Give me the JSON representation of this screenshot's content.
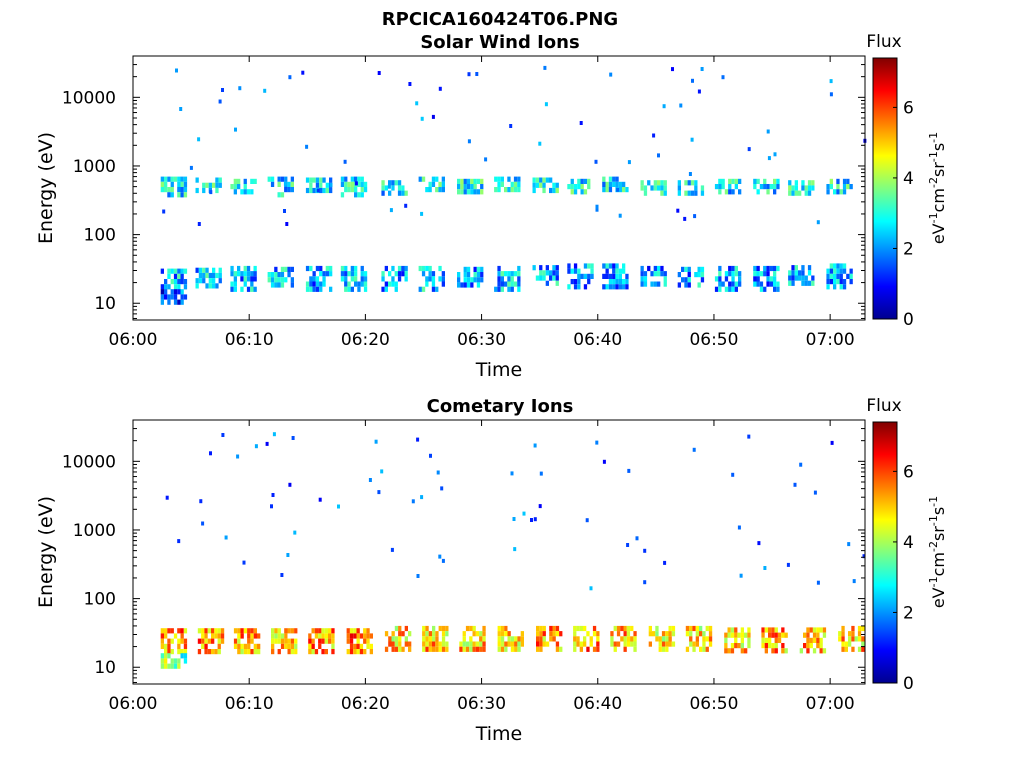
{
  "figure": {
    "file_title": "RPCICA160424T06.PNG"
  },
  "chart_data": [
    {
      "type": "heatmap",
      "title": "Solar Wind Ions",
      "xlabel": "Time",
      "ylabel": "Energy (eV)",
      "x_range": [
        "06:00",
        "07:03"
      ],
      "x_ticks": [
        "06:00",
        "06:10",
        "06:20",
        "06:30",
        "06:40",
        "06:50",
        "07:00"
      ],
      "y_scale": "log",
      "y_range": [
        5.7,
        40000
      ],
      "y_ticks": [
        "10",
        "100",
        "1000",
        "10000"
      ],
      "colorbar": {
        "title": "Flux",
        "label": "eV-1cm-2sr-1s-1",
        "range": [
          0,
          7.4
        ],
        "ticks": [
          "0",
          "2",
          "4",
          "6"
        ],
        "colormap": "jet"
      },
      "bursts": [
        {
          "t": "06:03.5",
          "features": [
            {
              "emin": 400,
              "emax": 700,
              "level": 2.6
            },
            {
              "emin": 16,
              "emax": 32,
              "level": 2.3
            },
            {
              "emin": 11,
              "emax": 16,
              "level": 1.4
            }
          ]
        },
        {
          "t": "06:06.5",
          "features": [
            {
              "emin": 420,
              "emax": 680,
              "level": 2.7
            },
            {
              "emin": 17,
              "emax": 33,
              "level": 2.4
            }
          ]
        },
        {
          "t": "06:09.5",
          "features": [
            {
              "emin": 450,
              "emax": 650,
              "level": 2.8
            },
            {
              "emin": 17,
              "emax": 35,
              "level": 2.2
            }
          ]
        },
        {
          "t": "06:12.7",
          "features": [
            {
              "emin": 400,
              "emax": 700,
              "level": 2.7
            },
            {
              "emin": 17,
              "emax": 34,
              "level": 2.3
            }
          ]
        },
        {
          "t": "06:16.0",
          "features": [
            {
              "emin": 430,
              "emax": 680,
              "level": 2.8
            },
            {
              "emin": 17,
              "emax": 35,
              "level": 2.1
            }
          ]
        },
        {
          "t": "06:19.0",
          "features": [
            {
              "emin": 380,
              "emax": 700,
              "level": 2.6
            },
            {
              "emin": 16,
              "emax": 35,
              "level": 2.3
            }
          ]
        },
        {
          "t": "06:22.5",
          "features": [
            {
              "emin": 380,
              "emax": 620,
              "level": 2.7
            },
            {
              "emin": 17,
              "emax": 35,
              "level": 2.2
            }
          ]
        },
        {
          "t": "06:25.7",
          "features": [
            {
              "emin": 420,
              "emax": 700,
              "level": 2.7
            },
            {
              "emin": 17,
              "emax": 35,
              "level": 2.4
            }
          ]
        },
        {
          "t": "06:29.0",
          "features": [
            {
              "emin": 440,
              "emax": 650,
              "level": 2.8
            },
            {
              "emin": 17,
              "emax": 34,
              "level": 2.2
            }
          ]
        },
        {
          "t": "06:32.2",
          "features": [
            {
              "emin": 420,
              "emax": 700,
              "level": 2.7
            },
            {
              "emin": 17,
              "emax": 35,
              "level": 2.4
            }
          ]
        },
        {
          "t": "06:35.5",
          "features": [
            {
              "emin": 430,
              "emax": 680,
              "level": 2.8
            },
            {
              "emin": 18,
              "emax": 36,
              "level": 2.3
            }
          ]
        },
        {
          "t": "06:38.5",
          "features": [
            {
              "emin": 440,
              "emax": 650,
              "level": 2.8
            },
            {
              "emin": 18,
              "emax": 38,
              "level": 2.1
            }
          ]
        },
        {
          "t": "06:41.5",
          "features": [
            {
              "emin": 450,
              "emax": 700,
              "level": 2.6
            },
            {
              "emin": 18,
              "emax": 38,
              "level": 2.2
            }
          ]
        },
        {
          "t": "06:44.8",
          "features": [
            {
              "emin": 430,
              "emax": 620,
              "level": 2.7
            },
            {
              "emin": 18,
              "emax": 35,
              "level": 2.0
            }
          ]
        },
        {
          "t": "06:48.0",
          "features": [
            {
              "emin": 400,
              "emax": 620,
              "level": 2.7
            },
            {
              "emin": 18,
              "emax": 34,
              "level": 2.1
            }
          ]
        },
        {
          "t": "06:51.2",
          "features": [
            {
              "emin": 400,
              "emax": 650,
              "level": 2.6
            },
            {
              "emin": 17,
              "emax": 35,
              "level": 2.2
            }
          ]
        },
        {
          "t": "06:54.5",
          "features": [
            {
              "emin": 450,
              "emax": 650,
              "level": 2.7
            },
            {
              "emin": 17,
              "emax": 35,
              "level": 2.1
            }
          ]
        },
        {
          "t": "06:57.5",
          "features": [
            {
              "emin": 420,
              "emax": 620,
              "level": 2.8
            },
            {
              "emin": 18,
              "emax": 36,
              "level": 2.2
            }
          ]
        },
        {
          "t": "07:00.8",
          "features": [
            {
              "emin": 440,
              "emax": 650,
              "level": 2.7
            },
            {
              "emin": 18,
              "emax": 38,
              "level": 2.3
            }
          ]
        }
      ]
    },
    {
      "type": "heatmap",
      "title": "Cometary Ions",
      "xlabel": "Time",
      "ylabel": "Energy (eV)",
      "x_range": [
        "06:00",
        "07:03"
      ],
      "x_ticks": [
        "06:00",
        "06:10",
        "06:20",
        "06:30",
        "06:40",
        "06:50",
        "07:00"
      ],
      "y_scale": "log",
      "y_range": [
        5.7,
        40000
      ],
      "y_ticks": [
        "10",
        "100",
        "1000",
        "10000"
      ],
      "colorbar": {
        "title": "Flux",
        "label": "eV-1cm-2sr-1s-1",
        "range": [
          0,
          7.4
        ],
        "ticks": [
          "0",
          "2",
          "4",
          "6"
        ],
        "colormap": "jet"
      },
      "bursts": [
        {
          "t": "06:03.5",
          "features": [
            {
              "emin": 16,
              "emax": 37,
              "level": 5.4
            },
            {
              "emin": 11,
              "emax": 16,
              "level": 3.6
            }
          ]
        },
        {
          "t": "06:06.7",
          "features": [
            {
              "emin": 17,
              "emax": 37,
              "level": 5.3
            }
          ]
        },
        {
          "t": "06:09.8",
          "features": [
            {
              "emin": 17,
              "emax": 37,
              "level": 5.2
            }
          ]
        },
        {
          "t": "06:13.0",
          "features": [
            {
              "emin": 17,
              "emax": 37,
              "level": 5.0
            }
          ]
        },
        {
          "t": "06:16.2",
          "features": [
            {
              "emin": 17,
              "emax": 37,
              "level": 5.3
            }
          ]
        },
        {
          "t": "06:19.5",
          "features": [
            {
              "emin": 17,
              "emax": 37,
              "level": 5.6
            }
          ]
        },
        {
          "t": "06:22.8",
          "features": [
            {
              "emin": 17,
              "emax": 40,
              "level": 4.9
            }
          ]
        },
        {
          "t": "06:26.0",
          "features": [
            {
              "emin": 17,
              "emax": 40,
              "level": 5.0
            }
          ]
        },
        {
          "t": "06:29.2",
          "features": [
            {
              "emin": 17,
              "emax": 40,
              "level": 5.0
            }
          ]
        },
        {
          "t": "06:32.5",
          "features": [
            {
              "emin": 17,
              "emax": 40,
              "level": 5.0
            }
          ]
        },
        {
          "t": "06:35.8",
          "features": [
            {
              "emin": 18,
              "emax": 40,
              "level": 5.3
            }
          ]
        },
        {
          "t": "06:39.0",
          "features": [
            {
              "emin": 18,
              "emax": 40,
              "level": 5.4
            }
          ]
        },
        {
          "t": "06:42.2",
          "features": [
            {
              "emin": 17,
              "emax": 40,
              "level": 5.1
            }
          ]
        },
        {
          "t": "06:45.5",
          "features": [
            {
              "emin": 17,
              "emax": 40,
              "level": 4.8
            }
          ]
        },
        {
          "t": "06:48.7",
          "features": [
            {
              "emin": 17,
              "emax": 40,
              "level": 4.8
            }
          ]
        },
        {
          "t": "06:52.0",
          "features": [
            {
              "emin": 17,
              "emax": 38,
              "level": 5.0
            }
          ]
        },
        {
          "t": "06:55.2",
          "features": [
            {
              "emin": 17,
              "emax": 38,
              "level": 5.2
            }
          ]
        },
        {
          "t": "06:58.5",
          "features": [
            {
              "emin": 17,
              "emax": 38,
              "level": 5.1
            }
          ]
        },
        {
          "t": "07:01.8",
          "features": [
            {
              "emin": 17,
              "emax": 40,
              "level": 5.0
            }
          ]
        }
      ]
    }
  ]
}
